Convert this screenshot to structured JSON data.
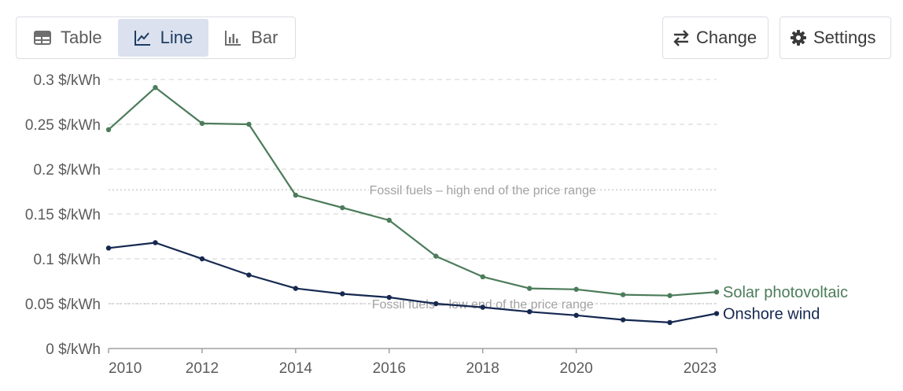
{
  "toolbar": {
    "tabs": [
      {
        "label": "Table",
        "icon": "table-icon",
        "active": false
      },
      {
        "label": "Line",
        "icon": "line-chart-icon",
        "active": true
      },
      {
        "label": "Bar",
        "icon": "bar-chart-icon",
        "active": false
      }
    ],
    "change_label": "Change",
    "settings_label": "Settings"
  },
  "colors": {
    "solar": "#4c7c5a",
    "wind": "#152850",
    "grid": "#d9d9d9",
    "axis": "#a0a0a0",
    "annotation": "#a1a1a1",
    "active_tab_bg": "#dbe1ee"
  },
  "chart_data": {
    "type": "line",
    "x": [
      2010,
      2011,
      2012,
      2013,
      2014,
      2015,
      2016,
      2017,
      2018,
      2019,
      2020,
      2021,
      2022,
      2023
    ],
    "xticks": [
      "2010",
      "2012",
      "2014",
      "2016",
      "2018",
      "2020",
      "2023"
    ],
    "xtick_values": [
      2010,
      2012,
      2014,
      2016,
      2018,
      2020,
      2023
    ],
    "xlim": [
      2010,
      2023
    ],
    "ylim": [
      0,
      0.3
    ],
    "yticks": [
      {
        "value": 0,
        "label": "0 $/kWh"
      },
      {
        "value": 0.05,
        "label": "0.05 $/kWh"
      },
      {
        "value": 0.1,
        "label": "0.1 $/kWh"
      },
      {
        "value": 0.15,
        "label": "0.15 $/kWh"
      },
      {
        "value": 0.2,
        "label": "0.2 $/kWh"
      },
      {
        "value": 0.25,
        "label": "0.25 $/kWh"
      },
      {
        "value": 0.3,
        "label": "0.3 $/kWh"
      }
    ],
    "grid": true,
    "series": [
      {
        "name": "Solar photovoltaic",
        "color": "#4c7c5a",
        "values": [
          0.244,
          0.291,
          0.251,
          0.25,
          0.171,
          0.157,
          0.143,
          0.103,
          0.08,
          0.067,
          0.066,
          0.06,
          0.059,
          0.063
        ]
      },
      {
        "name": "Onshore wind",
        "color": "#152850",
        "values": [
          0.112,
          0.118,
          0.1,
          0.082,
          0.067,
          0.061,
          0.057,
          0.05,
          0.046,
          0.041,
          0.037,
          0.032,
          0.029,
          0.039
        ]
      }
    ],
    "reference_lines": [
      {
        "value": 0.177,
        "label": "Fossil fuels – high end of the price range",
        "label_x": 2018
      },
      {
        "value": 0.05,
        "label": "Fossil fuels – low end of the price range",
        "label_x": 2018
      }
    ]
  }
}
